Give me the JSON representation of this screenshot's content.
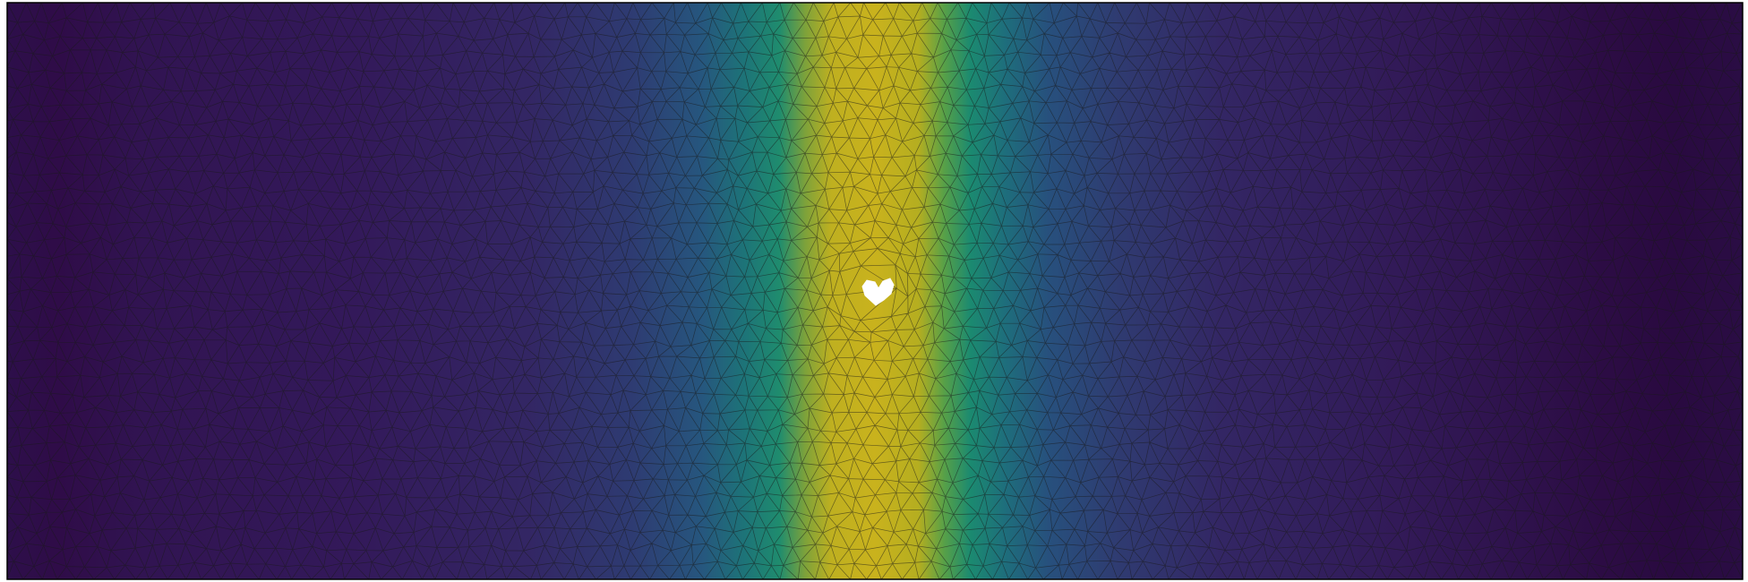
{
  "figure": {
    "colormap": "viridis",
    "colors": {
      "low": "#30114f",
      "mid_low": "#2f4b84",
      "mid": "#1f8a70",
      "high": "#c8b41c",
      "mesh_edges": "#1a1a1a",
      "hole": "#ffffff",
      "border": "#000000"
    },
    "field": {
      "peak_position": 0.5,
      "description_icon": "heart-shaped-hole-icon"
    },
    "mesh": {
      "type": "triangular"
    }
  }
}
